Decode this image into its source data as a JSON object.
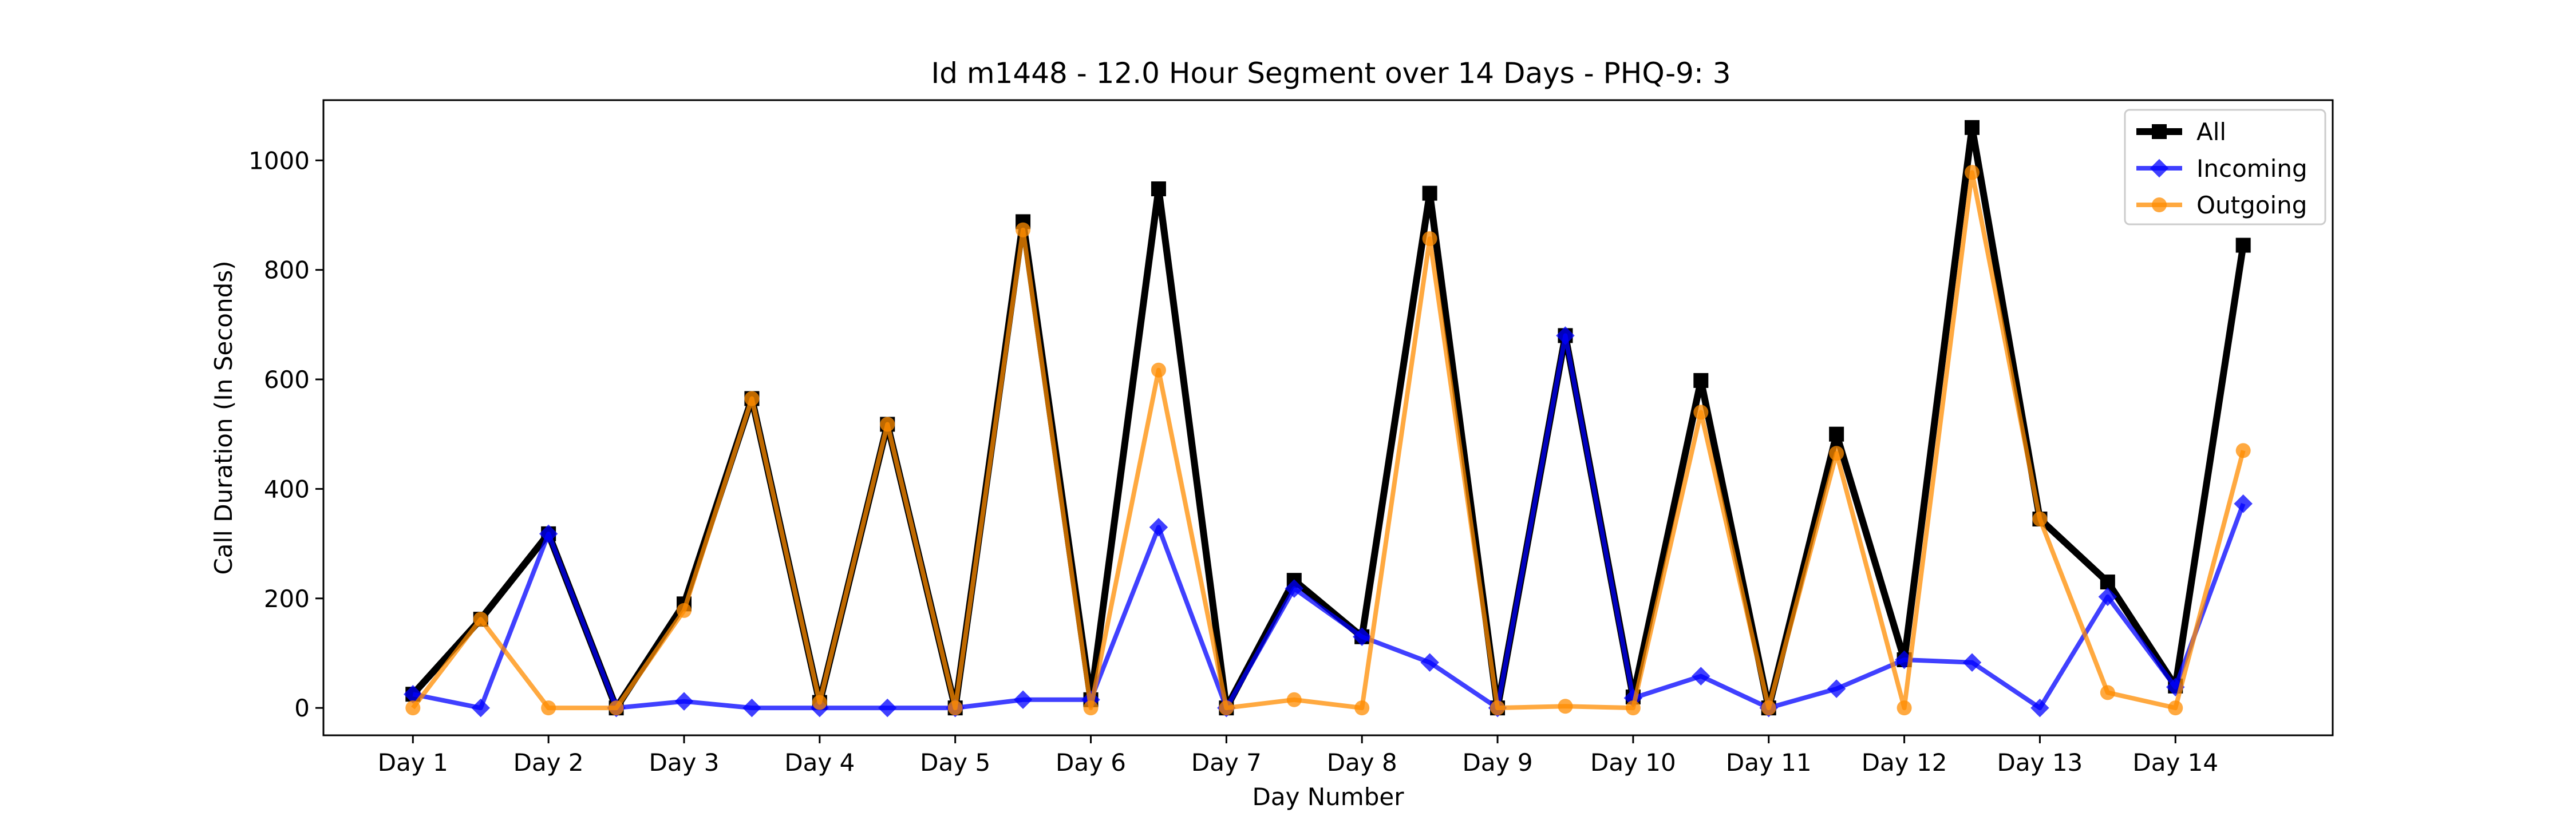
{
  "chart_data": {
    "type": "line",
    "title": "Id m1448 - 12.0 Hour Segment over 14 Days - PHQ-9: 3",
    "xlabel": "Day Number",
    "ylabel": "Call Duration (In Seconds)",
    "x": [
      1,
      1.5,
      2,
      2.5,
      3,
      3.5,
      4,
      4.5,
      5,
      5.5,
      6,
      6.5,
      7,
      7.5,
      8,
      8.5,
      9,
      9.5,
      10,
      10.5,
      11,
      11.5,
      12,
      12.5,
      13,
      13.5,
      14,
      14.5
    ],
    "categories": [
      "Day 1",
      "Day 2",
      "Day 3",
      "Day 4",
      "Day 5",
      "Day 6",
      "Day 7",
      "Day 8",
      "Day 9",
      "Day 10",
      "Day 11",
      "Day 12",
      "Day 13",
      "Day 14"
    ],
    "xlim": [
      0.34,
      15.16
    ],
    "ylim": [
      -50,
      1110
    ],
    "yticks": [
      0,
      200,
      400,
      600,
      800,
      1000
    ],
    "grid": false,
    "legend_position": "top-right",
    "series": [
      {
        "name": "All",
        "color": "#000000",
        "marker": "square",
        "values": [
          25,
          162,
          318,
          0,
          190,
          565,
          10,
          518,
          0,
          888,
          15,
          948,
          0,
          233,
          130,
          940,
          0,
          680,
          20,
          598,
          0,
          500,
          88,
          1060,
          345,
          230,
          40,
          845
        ]
      },
      {
        "name": "Incoming",
        "color": "#0000ff",
        "marker": "diamond",
        "values": [
          25,
          0,
          318,
          0,
          12,
          0,
          0,
          0,
          0,
          15,
          15,
          330,
          0,
          218,
          130,
          83,
          0,
          680,
          18,
          58,
          0,
          35,
          88,
          83,
          0,
          203,
          38,
          373
        ]
      },
      {
        "name": "Outgoing",
        "color": "#ff8c00",
        "marker": "circle",
        "values": [
          0,
          162,
          0,
          0,
          178,
          565,
          10,
          518,
          0,
          873,
          0,
          617,
          0,
          15,
          0,
          857,
          0,
          3,
          0,
          540,
          0,
          465,
          0,
          978,
          345,
          28,
          0,
          470
        ]
      }
    ]
  }
}
